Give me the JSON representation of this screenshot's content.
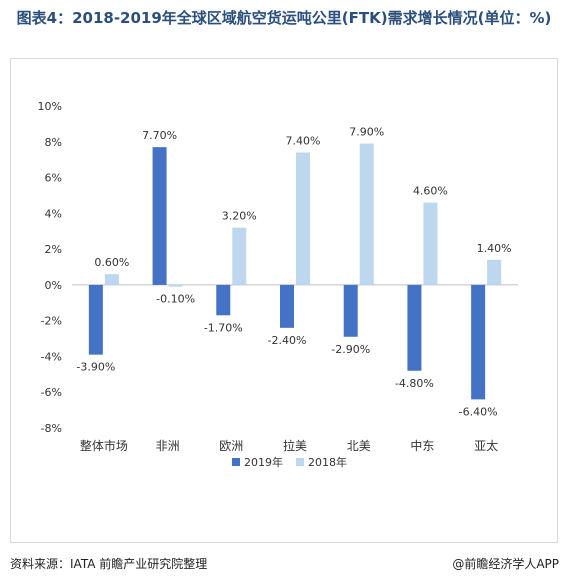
{
  "title": "图表4：2018-2019年全球区域航空货运吨公里(FTK)需求增长情况(单位：%)",
  "source": "资料来源：IATA  前瞻产业研究院整理",
  "brand": "@前瞻经济学人APP",
  "chart_data": {
    "type": "bar",
    "categories": [
      "整体市场",
      "非洲",
      "欧洲",
      "拉美",
      "北美",
      "中东",
      "亚太"
    ],
    "series": [
      {
        "name": "2019年",
        "color": "#4472c4",
        "values": [
          -3.9,
          7.7,
          -1.7,
          -2.4,
          -2.9,
          -4.8,
          -6.4
        ],
        "labels": [
          "-3.90%",
          "7.70%",
          "-1.70%",
          "-2.40%",
          "-2.90%",
          "-4.80%",
          "-6.40%"
        ]
      },
      {
        "name": "2018年",
        "color": "#bdd7ee",
        "values": [
          0.6,
          -0.1,
          3.2,
          7.4,
          7.9,
          4.6,
          1.4
        ],
        "labels": [
          "0.60%",
          "-0.10%",
          "3.20%",
          "7.40%",
          "7.90%",
          "4.60%",
          "1.40%"
        ]
      }
    ],
    "ylim": [
      -8,
      10
    ],
    "yticks": [
      "10%",
      "8%",
      "6%",
      "4%",
      "2%",
      "0%",
      "-2%",
      "-4%",
      "-6%",
      "-8%"
    ],
    "ytick_values": [
      10,
      8,
      6,
      4,
      2,
      0,
      -2,
      -4,
      -6,
      -8
    ],
    "legend_position": "bottom",
    "grid": false
  }
}
